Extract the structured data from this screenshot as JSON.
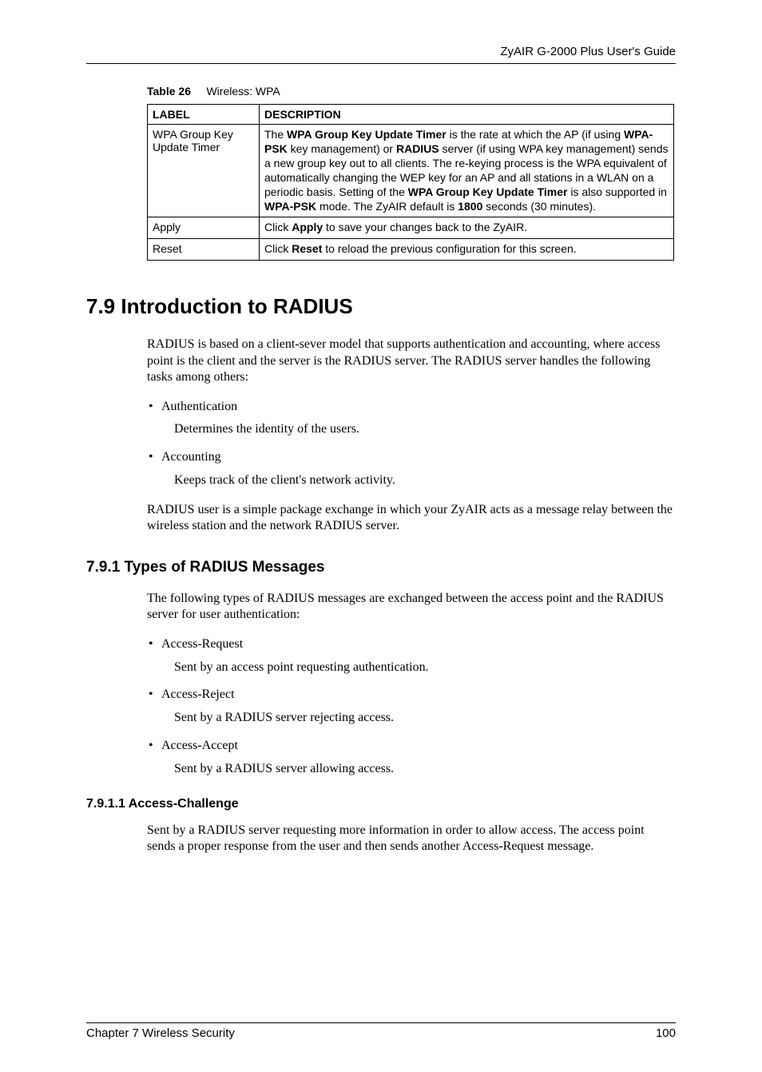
{
  "header": {
    "running_title": "ZyAIR G-2000 Plus User's Guide"
  },
  "table26": {
    "caption_label": "Table 26",
    "caption_text": "Wireless: WPA",
    "columns": [
      "LABEL",
      "DESCRIPTION"
    ],
    "rows": [
      {
        "label": "WPA Group Key Update Timer",
        "desc_parts": [
          {
            "t": "The ",
            "b": false
          },
          {
            "t": "WPA Group Key Update Timer",
            "b": true
          },
          {
            "t": " is the rate at which the AP (if using ",
            "b": false
          },
          {
            "t": "WPA-PSK",
            "b": true
          },
          {
            "t": " key management) or ",
            "b": false
          },
          {
            "t": "RADIUS",
            "b": true
          },
          {
            "t": " server (if using WPA key management) sends a new group key out to all clients. The re-keying process is the WPA equivalent of automatically changing the WEP key for an AP and all stations in a WLAN on a periodic basis. Setting of the ",
            "b": false
          },
          {
            "t": "WPA Group Key Update Timer",
            "b": true
          },
          {
            "t": " is also supported in ",
            "b": false
          },
          {
            "t": "WPA-PSK",
            "b": true
          },
          {
            "t": " mode. The ZyAIR default is ",
            "b": false
          },
          {
            "t": "1800",
            "b": true
          },
          {
            "t": " seconds (30 minutes).",
            "b": false
          }
        ]
      },
      {
        "label": "Apply",
        "desc_parts": [
          {
            "t": "Click ",
            "b": false
          },
          {
            "t": "Apply",
            "b": true
          },
          {
            "t": " to save your changes back to the ZyAIR.",
            "b": false
          }
        ]
      },
      {
        "label": "Reset",
        "desc_parts": [
          {
            "t": "Click ",
            "b": false
          },
          {
            "t": "Reset",
            "b": true
          },
          {
            "t": " to reload the previous configuration for this screen.",
            "b": false
          }
        ]
      }
    ]
  },
  "section79": {
    "title": "7.9  Introduction to RADIUS",
    "intro": "RADIUS is based on a client-sever model that supports authentication and accounting, where access point is the client and the server is the RADIUS server. The RADIUS server handles the following tasks among others:",
    "bullets": [
      {
        "head": "Authentication",
        "sub": "Determines the identity of the users."
      },
      {
        "head": "Accounting",
        "sub": "Keeps track of the client's network activity."
      }
    ],
    "outro": "RADIUS user is a simple package exchange in which your ZyAIR acts as a message relay between the wireless station and the network RADIUS server."
  },
  "section791": {
    "title": "7.9.1  Types of RADIUS Messages",
    "intro": "The following types of RADIUS messages are exchanged between the access point and the RADIUS server for user authentication:",
    "bullets": [
      {
        "head": "Access-Request",
        "sub": "Sent by an access point requesting authentication."
      },
      {
        "head": "Access-Reject",
        "sub": "Sent by a RADIUS server rejecting access."
      },
      {
        "head": "Access-Accept",
        "sub": "Sent by a RADIUS server allowing access."
      }
    ]
  },
  "section7911": {
    "title": "7.9.1.1  Access-Challenge",
    "text": "Sent by a RADIUS server requesting more information in order to allow access. The access point sends a proper response from the user and then sends another Access-Request message."
  },
  "footer": {
    "chapter": "Chapter 7 Wireless Security",
    "page": "100"
  }
}
